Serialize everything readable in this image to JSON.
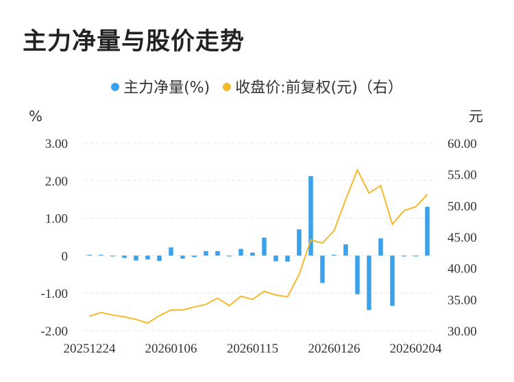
{
  "title": "主力净量与股价走势",
  "chart_data": {
    "type": "bar+line",
    "legend": [
      {
        "label": "主力净量(%)",
        "color": "#3aa1ea"
      },
      {
        "label": "收盘价:前复权(元)（右）",
        "color": "#f4b92b"
      }
    ],
    "left_unit": "%",
    "right_unit": "元",
    "left_ticks": [
      "3.00",
      "2.00",
      "1.00",
      "0",
      "-1.00",
      "-2.00"
    ],
    "right_ticks": [
      "60.00",
      "55.00",
      "50.00",
      "45.00",
      "40.00",
      "35.00",
      "30.00"
    ],
    "left_range": [
      -2,
      3
    ],
    "right_range": [
      30,
      60
    ],
    "x_ticks": [
      "20251224",
      "20260106",
      "20260115",
      "20260126",
      "20260204"
    ],
    "x_tick_index": [
      0,
      7,
      14,
      21,
      28
    ],
    "bars": [
      0.02,
      0.01,
      -0.01,
      -0.06,
      -0.13,
      -0.1,
      -0.14,
      0.22,
      -0.08,
      -0.04,
      0.12,
      0.12,
      -0.02,
      0.18,
      0.08,
      0.48,
      -0.15,
      -0.16,
      0.7,
      2.12,
      -0.73,
      0.02,
      0.3,
      -1.03,
      -1.45,
      0.46,
      -1.34,
      -0.01,
      -0.02,
      1.3
    ],
    "prices": [
      32.3,
      32.9,
      32.5,
      32.2,
      31.8,
      31.2,
      32.4,
      33.3,
      33.3,
      33.8,
      34.2,
      35.2,
      34.0,
      35.5,
      35.0,
      36.3,
      35.7,
      35.4,
      39.0,
      44.5,
      44.0,
      46.0,
      51.0,
      55.7,
      52.0,
      53.2,
      47.0,
      49.2,
      49.8,
      51.8
    ]
  }
}
